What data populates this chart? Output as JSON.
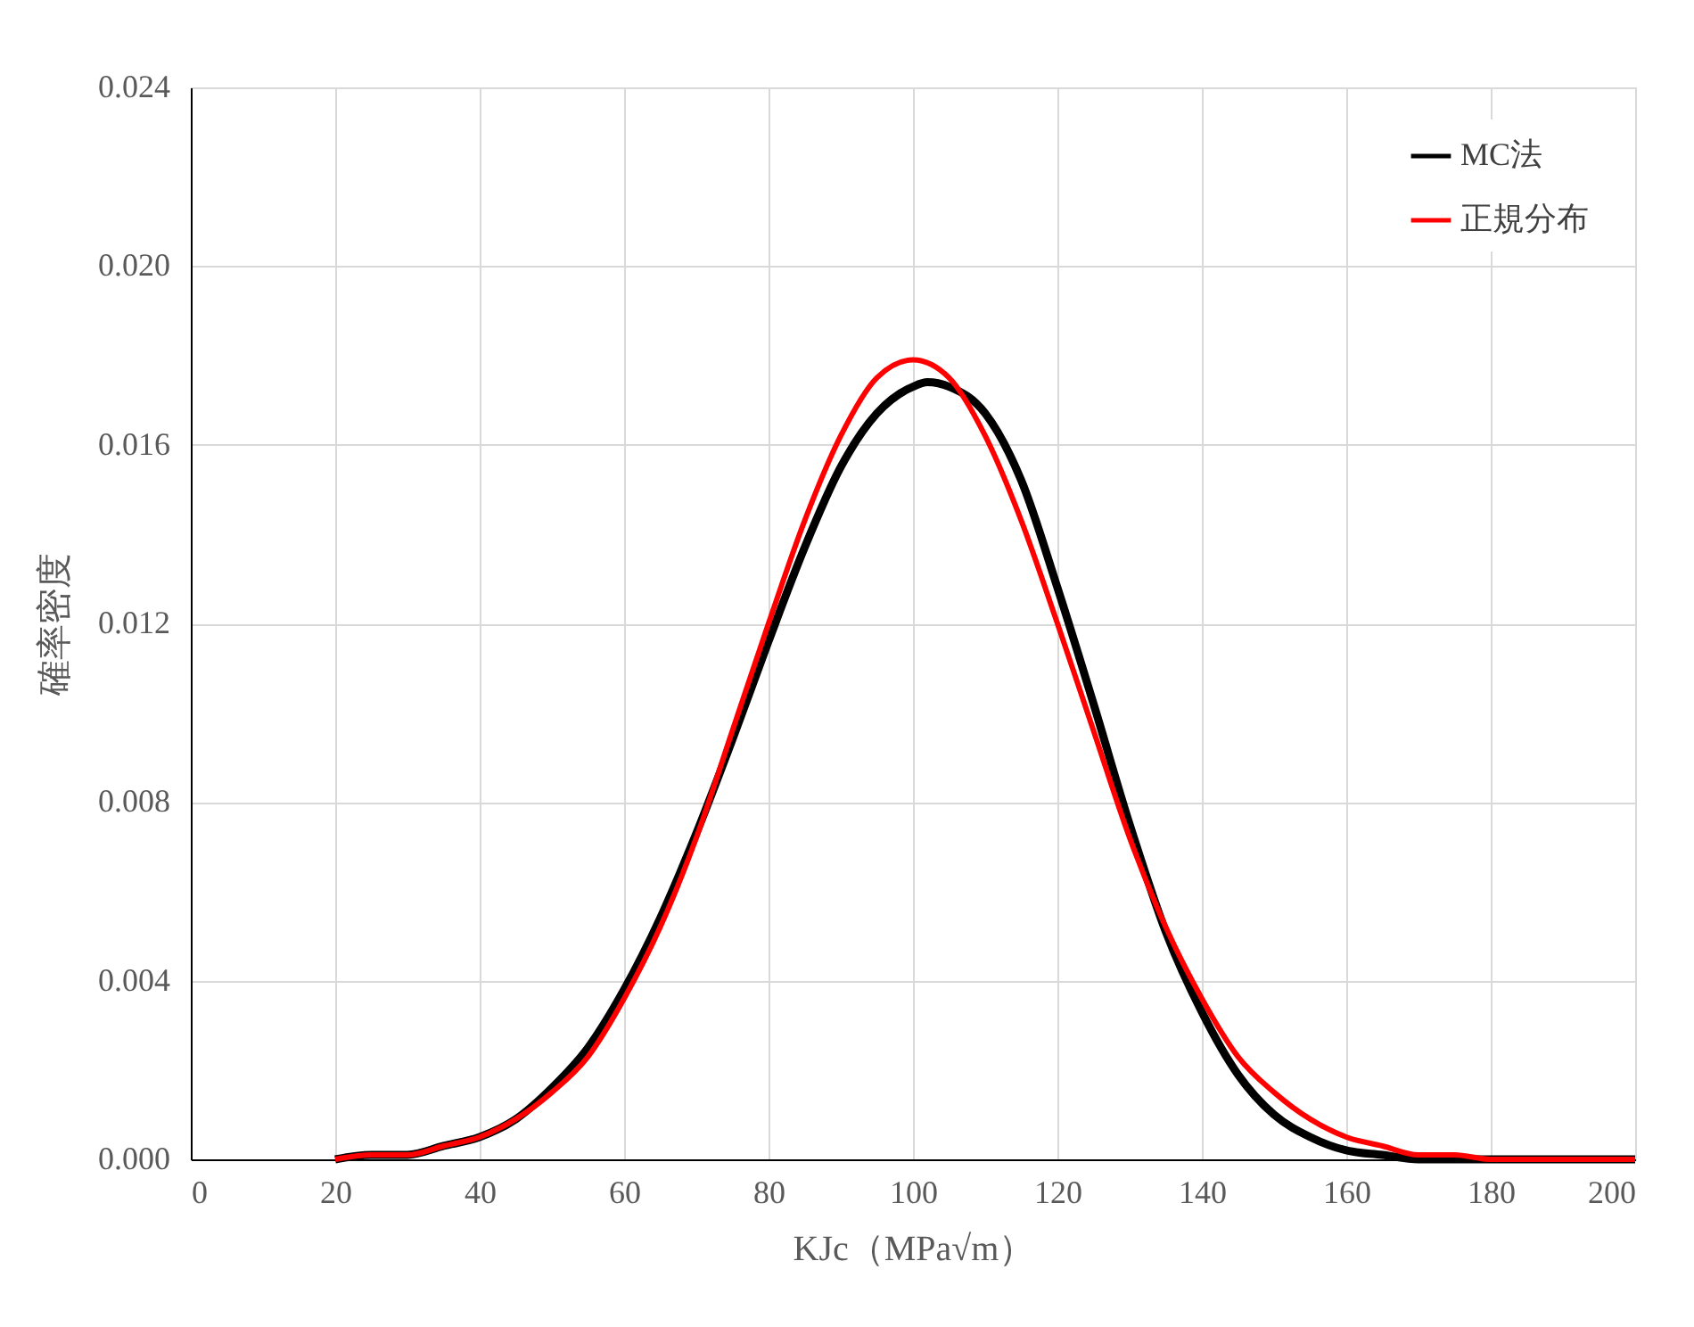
{
  "chart_data": {
    "type": "line",
    "xlabel": "KJc（MPa√m）",
    "ylabel": "確率密度",
    "xlim": [
      0,
      200
    ],
    "xticks": [
      0,
      20,
      40,
      60,
      80,
      100,
      120,
      140,
      160,
      180,
      200
    ],
    "ylim": [
      0,
      0.024
    ],
    "yticks": [
      {
        "value": 0,
        "label": "0.000"
      },
      {
        "value": 0.004,
        "label": "0.004"
      },
      {
        "value": 0.008,
        "label": "0.008"
      },
      {
        "value": 0.012,
        "label": "0.012"
      },
      {
        "value": 0.016,
        "label": "0.016"
      },
      {
        "value": 0.02,
        "label": "0.020"
      },
      {
        "value": 0.024,
        "label": "0.024"
      }
    ],
    "grid": true,
    "legend": "top right",
    "marker": "none",
    "line_style": "solid",
    "series": [
      {
        "name": "MC法",
        "color": "#000000",
        "x": [
          20,
          25,
          30,
          35,
          40,
          45,
          50,
          55,
          60,
          65,
          70,
          75,
          80,
          85,
          90,
          95,
          100,
          102,
          105,
          110,
          115,
          120,
          125,
          130,
          135,
          140,
          145,
          150,
          155,
          160,
          165,
          170,
          180,
          190,
          200
        ],
        "values": [
          0.0,
          0.0001,
          0.0001,
          0.0003,
          0.0005,
          0.0009,
          0.0016,
          0.0025,
          0.0038,
          0.0054,
          0.0073,
          0.0094,
          0.0116,
          0.0137,
          0.0155,
          0.0167,
          0.0173,
          0.0174,
          0.0173,
          0.0167,
          0.0152,
          0.0128,
          0.0102,
          0.0075,
          0.0051,
          0.0033,
          0.0019,
          0.001,
          0.0005,
          0.0002,
          0.0001,
          0.0,
          0.0,
          0.0,
          0.0
        ]
      },
      {
        "name": "正規分布",
        "color": "#ff0000",
        "x": [
          20,
          25,
          30,
          35,
          40,
          45,
          50,
          55,
          60,
          65,
          70,
          75,
          80,
          85,
          90,
          95,
          100,
          105,
          110,
          115,
          120,
          125,
          130,
          135,
          140,
          145,
          150,
          155,
          160,
          165,
          170,
          175,
          180,
          190,
          200
        ],
        "values": [
          0.0,
          0.0001,
          0.0001,
          0.0003,
          0.0005,
          0.0009,
          0.0015,
          0.0023,
          0.0036,
          0.0052,
          0.0072,
          0.0096,
          0.012,
          0.0143,
          0.0162,
          0.0175,
          0.0179,
          0.0175,
          0.0162,
          0.0143,
          0.012,
          0.0096,
          0.0072,
          0.0052,
          0.0036,
          0.0023,
          0.0015,
          0.0009,
          0.0005,
          0.0003,
          0.0001,
          0.0001,
          0.0,
          0.0,
          0.0
        ]
      }
    ]
  }
}
